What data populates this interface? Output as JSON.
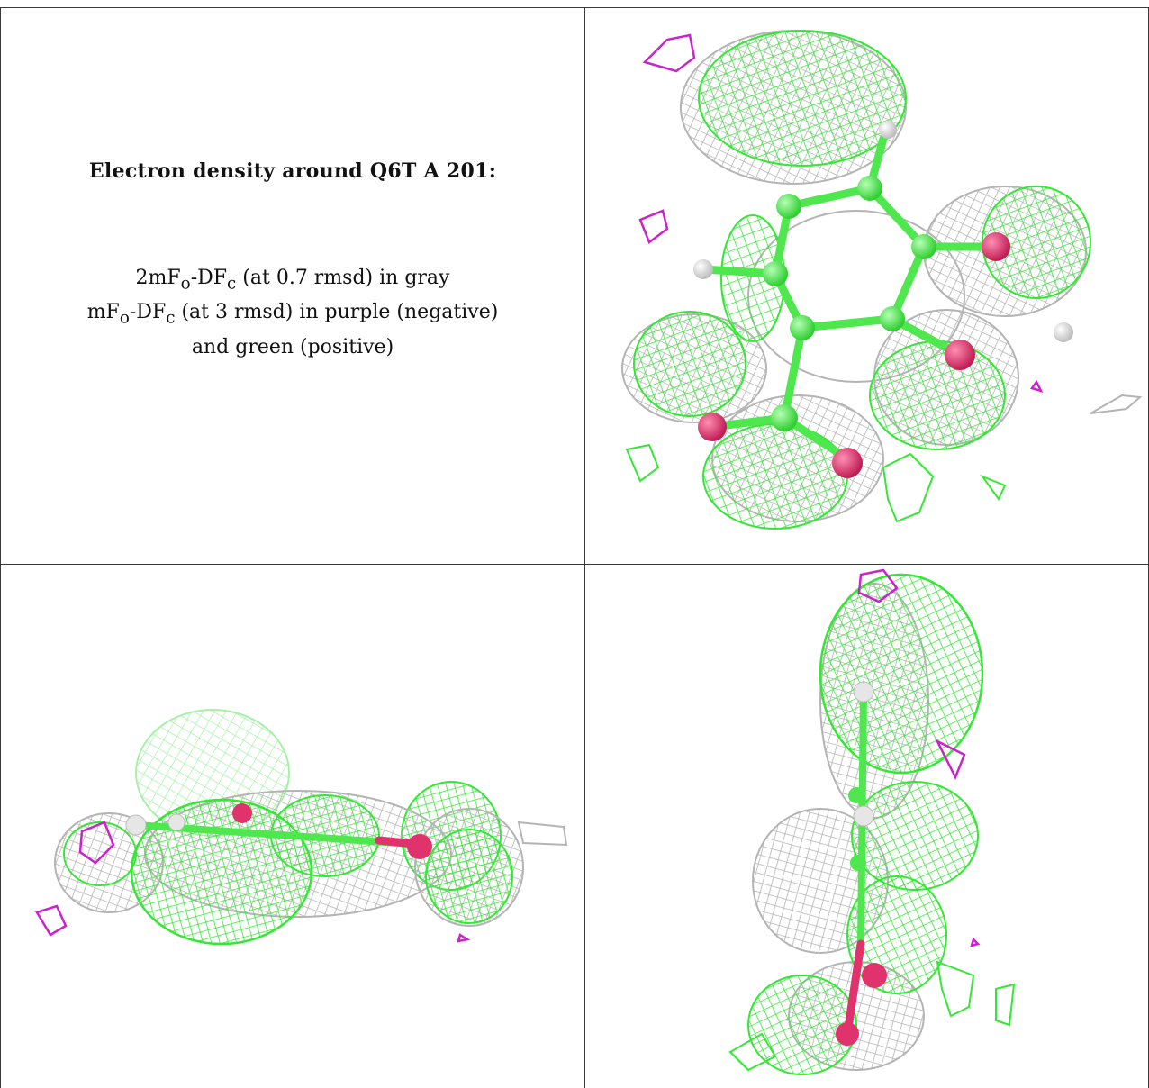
{
  "title": "Electron density around Q6T A 201:",
  "legend": {
    "line1": "2mF<sub>o</sub>-DF<sub>c</sub> (at 0.7 rmsd) in gray",
    "line2": "mF<sub>o</sub>-DF<sub>c</sub> (at 3 rmsd) in purple (negative)",
    "line3": "and green (positive)"
  },
  "colors": {
    "gray_mesh": "#b4b4b4",
    "green_mesh": "#33e833",
    "purple_mesh": "#cc22cc",
    "carbon": "#4ee84e",
    "oxygen": "#e0336e",
    "hydrogen": "#e6e6e6",
    "border": "#3a3a3a"
  },
  "panels": [
    "top-view",
    "side-view",
    "edge-view"
  ]
}
